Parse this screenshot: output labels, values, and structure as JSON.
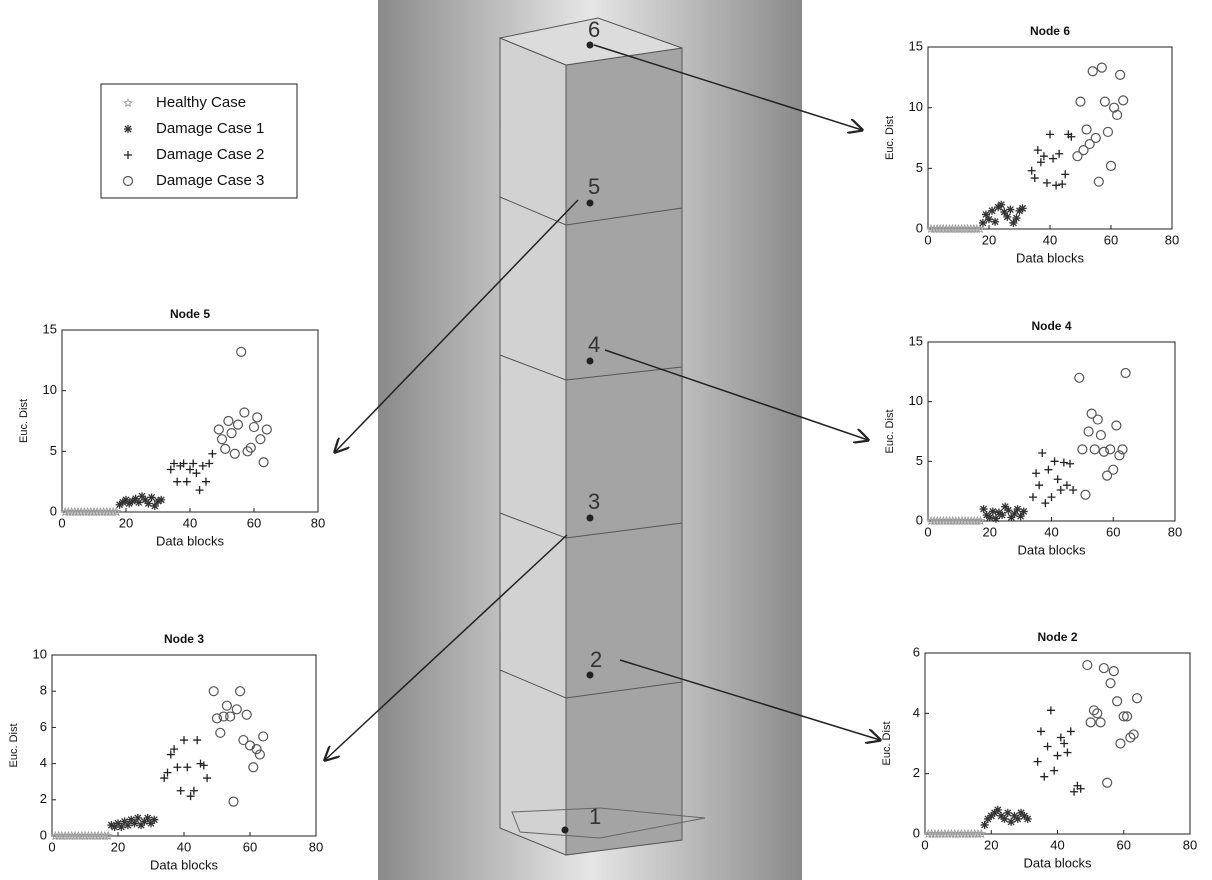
{
  "legend": {
    "entries": [
      {
        "label": "Healthy Case",
        "marker": "star",
        "color": "#9a9a9a"
      },
      {
        "label": "Damage Case 1",
        "marker": "asterisk",
        "color": "#333333"
      },
      {
        "label": "Damage Case 2",
        "marker": "plus",
        "color": "#222222"
      },
      {
        "label": "Damage Case 3",
        "marker": "circle",
        "color": "#555555"
      }
    ]
  },
  "diagram": {
    "node_labels": [
      "1",
      "2",
      "3",
      "4",
      "5",
      "6"
    ]
  },
  "chart_data": [
    {
      "type": "scatter",
      "title": "Node 6",
      "x_label": "Data blocks",
      "y_label": "Euc. Dist",
      "xlim": [
        0,
        80
      ],
      "ylim": [
        0,
        15
      ],
      "xticks": [
        0,
        20,
        40,
        60,
        80
      ],
      "yticks": [
        0,
        5,
        10,
        15
      ],
      "series": [
        {
          "x": [
            1,
            2,
            3,
            4,
            5,
            6,
            7,
            8,
            9,
            10,
            11,
            12,
            13,
            14,
            15,
            16,
            17
          ],
          "values": [
            0,
            0,
            0,
            0,
            0,
            0,
            0,
            0,
            0,
            0,
            0,
            0,
            0,
            0,
            0,
            0,
            0
          ]
        },
        {
          "x": [
            18,
            19,
            20,
            21,
            22,
            23,
            24,
            25,
            26,
            27,
            28,
            29,
            30,
            31
          ],
          "values": [
            0.5,
            1.2,
            0.8,
            1.5,
            0.6,
            1.8,
            2.0,
            1.4,
            1.0,
            1.6,
            0.5,
            0.9,
            1.5,
            1.7
          ]
        },
        {
          "x": [
            34,
            35,
            36,
            37,
            38,
            39,
            40,
            41,
            42,
            43,
            44,
            45,
            46,
            47
          ],
          "values": [
            4.8,
            4.2,
            6.5,
            5.5,
            6.0,
            3.8,
            7.8,
            5.8,
            3.6,
            6.2,
            3.7,
            4.5,
            7.8,
            7.6
          ]
        },
        {
          "x": [
            49,
            50,
            51,
            52,
            53,
            54,
            55,
            56,
            57,
            58,
            59,
            60,
            61,
            62,
            63,
            64
          ],
          "values": [
            6.0,
            10.5,
            6.5,
            8.2,
            7.0,
            13.0,
            7.5,
            3.9,
            13.3,
            10.5,
            8.0,
            5.2,
            10.0,
            9.4,
            12.7,
            10.6
          ]
        }
      ]
    },
    {
      "type": "scatter",
      "title": "Node 5",
      "x_label": "Data blocks",
      "y_label": "Euc. Dist",
      "xlim": [
        0,
        80
      ],
      "ylim": [
        0,
        15
      ],
      "xticks": [
        0,
        20,
        40,
        60,
        80
      ],
      "yticks": [
        0,
        5,
        10,
        15
      ],
      "series": [
        {
          "x": [
            1,
            2,
            3,
            4,
            5,
            6,
            7,
            8,
            9,
            10,
            11,
            12,
            13,
            14,
            15,
            16,
            17
          ],
          "values": [
            0,
            0,
            0,
            0,
            0,
            0,
            0,
            0,
            0,
            0,
            0,
            0,
            0,
            0,
            0,
            0,
            0
          ]
        },
        {
          "x": [
            18,
            19,
            20,
            21,
            22,
            23,
            24,
            25,
            26,
            27,
            28,
            29,
            30,
            31
          ],
          "values": [
            0.6,
            0.8,
            1.0,
            0.7,
            0.9,
            1.1,
            0.8,
            1.3,
            1.0,
            0.7,
            1.2,
            0.5,
            0.9,
            1.0
          ]
        },
        {
          "x": [
            34,
            35,
            36,
            37,
            38,
            39,
            40,
            41,
            42,
            43,
            44,
            45,
            46,
            47
          ],
          "values": [
            3.5,
            4.0,
            2.5,
            3.8,
            4.0,
            2.5,
            3.5,
            4.0,
            3.2,
            1.8,
            3.8,
            2.5,
            4.0,
            4.8
          ]
        },
        {
          "x": [
            49,
            50,
            51,
            52,
            53,
            54,
            55,
            56,
            57,
            58,
            59,
            60,
            61,
            62,
            63,
            64
          ],
          "values": [
            6.8,
            6.0,
            5.2,
            7.5,
            6.5,
            4.8,
            7.2,
            13.2,
            8.2,
            5.0,
            5.3,
            7.0,
            7.8,
            6.0,
            4.1,
            6.8
          ]
        }
      ]
    },
    {
      "type": "scatter",
      "title": "Node 4",
      "x_label": "Data blocks",
      "y_label": "Euc. Dist",
      "xlim": [
        0,
        80
      ],
      "ylim": [
        0,
        15
      ],
      "xticks": [
        0,
        20,
        40,
        60,
        80
      ],
      "yticks": [
        0,
        5,
        10,
        15
      ],
      "series": [
        {
          "x": [
            1,
            2,
            3,
            4,
            5,
            6,
            7,
            8,
            9,
            10,
            11,
            12,
            13,
            14,
            15,
            16,
            17
          ],
          "values": [
            0,
            0,
            0,
            0,
            0,
            0,
            0,
            0,
            0,
            0,
            0,
            0,
            0,
            0,
            0,
            0,
            0
          ]
        },
        {
          "x": [
            18,
            19,
            20,
            21,
            22,
            23,
            24,
            25,
            26,
            27,
            28,
            29,
            30,
            31
          ],
          "values": [
            1.0,
            0.5,
            0.3,
            0.8,
            0.2,
            0.7,
            0.5,
            1.2,
            0.9,
            0.3,
            0.6,
            1.0,
            0.4,
            0.8
          ]
        },
        {
          "x": [
            34,
            35,
            36,
            37,
            38,
            39,
            40,
            41,
            42,
            43,
            44,
            45,
            46,
            47
          ],
          "values": [
            2.0,
            4.0,
            3.0,
            5.7,
            1.5,
            4.3,
            2.0,
            5.0,
            3.5,
            2.6,
            4.9,
            3.0,
            4.8,
            2.6
          ]
        },
        {
          "x": [
            49,
            50,
            51,
            52,
            53,
            54,
            55,
            56,
            57,
            58,
            59,
            60,
            61,
            62,
            63,
            64
          ],
          "values": [
            12.0,
            6.0,
            2.2,
            7.5,
            9.0,
            6.0,
            8.5,
            7.2,
            5.8,
            3.8,
            6.0,
            4.3,
            8.0,
            5.5,
            6.0,
            12.4
          ]
        }
      ]
    },
    {
      "type": "scatter",
      "title": "Node 3",
      "x_label": "Data blocks",
      "y_label": "Euc. Dist",
      "xlim": [
        0,
        80
      ],
      "ylim": [
        0,
        10
      ],
      "xticks": [
        0,
        20,
        40,
        60,
        80
      ],
      "yticks": [
        0,
        2,
        4,
        6,
        8,
        10
      ],
      "series": [
        {
          "x": [
            1,
            2,
            3,
            4,
            5,
            6,
            7,
            8,
            9,
            10,
            11,
            12,
            13,
            14,
            15,
            16,
            17
          ],
          "values": [
            0,
            0,
            0,
            0,
            0,
            0,
            0,
            0,
            0,
            0,
            0,
            0,
            0,
            0,
            0,
            0,
            0
          ]
        },
        {
          "x": [
            18,
            19,
            20,
            21,
            22,
            23,
            24,
            25,
            26,
            27,
            28,
            29,
            30,
            31
          ],
          "values": [
            0.6,
            0.5,
            0.7,
            0.5,
            0.8,
            0.6,
            0.9,
            0.7,
            1.0,
            0.6,
            0.8,
            1.0,
            0.7,
            0.9
          ]
        },
        {
          "x": [
            34,
            35,
            36,
            37,
            38,
            39,
            40,
            41,
            42,
            43,
            44,
            45,
            46,
            47
          ],
          "values": [
            3.2,
            3.5,
            4.5,
            4.8,
            3.8,
            2.5,
            5.3,
            3.8,
            2.2,
            2.5,
            5.3,
            4.0,
            3.9,
            3.2
          ]
        },
        {
          "x": [
            49,
            50,
            51,
            52,
            53,
            54,
            55,
            56,
            57,
            58,
            59,
            60,
            61,
            62,
            63,
            64
          ],
          "values": [
            8.0,
            6.5,
            5.7,
            6.6,
            7.2,
            6.6,
            1.9,
            7.0,
            8.0,
            5.3,
            6.7,
            5.0,
            3.8,
            4.8,
            4.5,
            5.5
          ]
        }
      ]
    },
    {
      "type": "scatter",
      "title": "Node 2",
      "x_label": "Data blocks",
      "y_label": "Euc. Dist",
      "xlim": [
        0,
        80
      ],
      "ylim": [
        0,
        6
      ],
      "xticks": [
        0,
        20,
        40,
        60,
        80
      ],
      "yticks": [
        0,
        2,
        4,
        6
      ],
      "series": [
        {
          "x": [
            1,
            2,
            3,
            4,
            5,
            6,
            7,
            8,
            9,
            10,
            11,
            12,
            13,
            14,
            15,
            16,
            17
          ],
          "values": [
            0,
            0,
            0,
            0,
            0,
            0,
            0,
            0,
            0,
            0,
            0,
            0,
            0,
            0,
            0,
            0,
            0
          ]
        },
        {
          "x": [
            18,
            19,
            20,
            21,
            22,
            23,
            24,
            25,
            26,
            27,
            28,
            29,
            30,
            31
          ],
          "values": [
            0.3,
            0.5,
            0.6,
            0.7,
            0.8,
            0.6,
            0.5,
            0.7,
            0.4,
            0.6,
            0.5,
            0.7,
            0.6,
            0.5
          ]
        },
        {
          "x": [
            34,
            35,
            36,
            37,
            38,
            39,
            40,
            41,
            42,
            43,
            44,
            45,
            46,
            47
          ],
          "values": [
            2.4,
            3.4,
            1.9,
            2.9,
            4.1,
            2.1,
            2.6,
            3.2,
            3.0,
            2.7,
            3.4,
            1.4,
            1.6,
            1.5
          ]
        },
        {
          "x": [
            49,
            50,
            51,
            52,
            53,
            54,
            55,
            56,
            57,
            58,
            59,
            60,
            61,
            62,
            63,
            64
          ],
          "values": [
            5.6,
            3.7,
            4.1,
            4.0,
            3.7,
            5.5,
            1.7,
            5.0,
            5.4,
            4.4,
            3.0,
            3.9,
            3.9,
            3.2,
            3.3,
            4.5
          ]
        }
      ]
    }
  ]
}
